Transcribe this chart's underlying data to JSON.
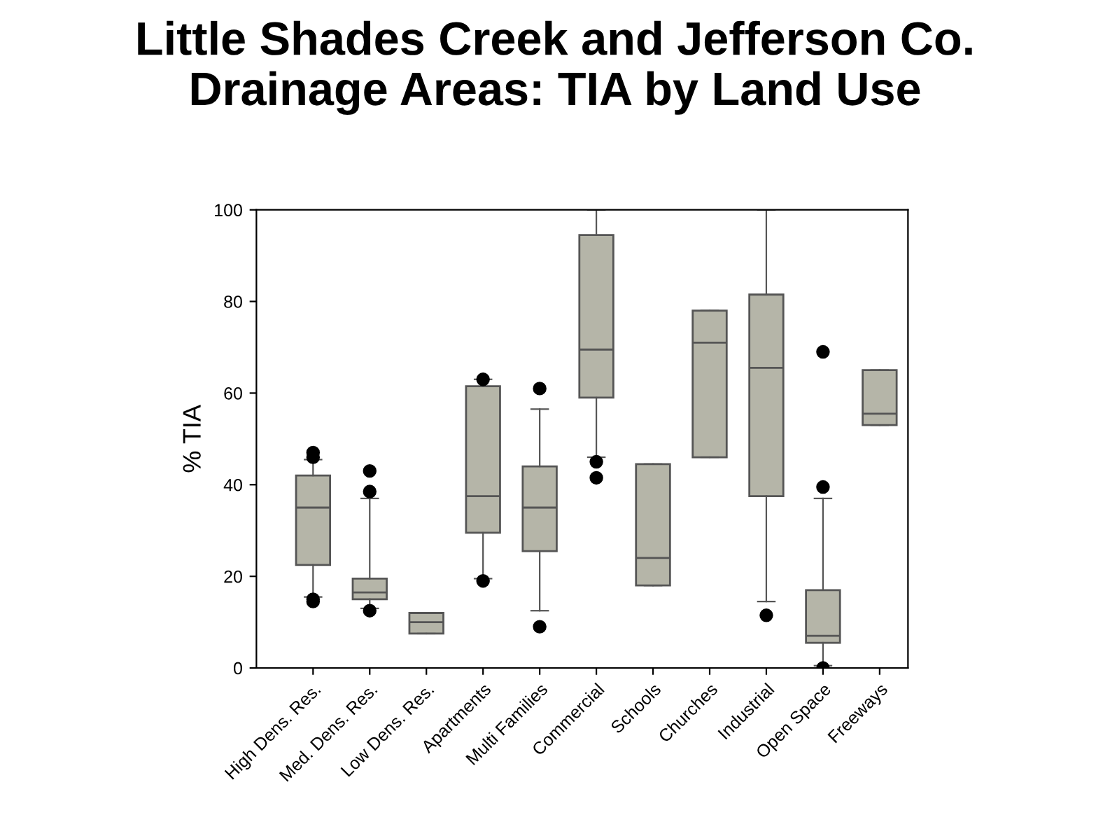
{
  "chart_data": {
    "type": "box",
    "title": "Little Shades Creek and Jefferson Co.\nDrainage Areas: TIA by Land Use",
    "ylabel": "% TIA",
    "categories": [
      "High Dens. Res.",
      "Med. Dens. Res.",
      "Low Dens. Res.",
      "Apartments",
      "Multi Families",
      "Commercial",
      "Schools",
      "Churches",
      "Industrial",
      "Open Space",
      "Freeways"
    ],
    "color": "#b5b5a8",
    "boxes": [
      {
        "low": 15.5,
        "q1": 22.5,
        "median": 35,
        "q3": 42,
        "high": 45.5,
        "outliers": [
          14.5,
          15,
          46,
          47
        ]
      },
      {
        "low": 13,
        "q1": 15,
        "median": 16.5,
        "q3": 19.5,
        "high": 37,
        "outliers": [
          12.5,
          38.5,
          43
        ]
      },
      {
        "low": 7.5,
        "q1": 7.5,
        "median": 10,
        "q3": 12,
        "high": 12
      },
      {
        "low": 19.5,
        "q1": 29.5,
        "median": 37.5,
        "q3": 61.5,
        "high": 63,
        "outliers": [
          19,
          63
        ]
      },
      {
        "low": 12.5,
        "q1": 25.5,
        "median": 35,
        "q3": 44,
        "high": 56.5,
        "outliers": [
          9,
          61
        ]
      },
      {
        "low": 46,
        "q1": 59,
        "median": 69.5,
        "q3": 94.5,
        "high": 100,
        "outliers": [
          45,
          41.5
        ]
      },
      {
        "low": 18,
        "q1": 18,
        "median": 24,
        "q3": 44.5,
        "high": 44.5
      },
      {
        "low": 46,
        "q1": 46,
        "median": 71,
        "q3": 78,
        "high": 78
      },
      {
        "low": 14.5,
        "q1": 37.5,
        "median": 65.5,
        "q3": 81.5,
        "high": 100,
        "outliers": [
          11.5
        ]
      },
      {
        "low": 0.5,
        "q1": 5.5,
        "median": 7,
        "q3": 17,
        "high": 37,
        "outliers": [
          0,
          39.5,
          69
        ]
      },
      {
        "low": 53,
        "q1": 53,
        "median": 55.5,
        "q3": 65,
        "high": 65
      }
    ],
    "ylim": [
      0,
      100
    ],
    "yticks": [
      0,
      20,
      40,
      60,
      80,
      100
    ],
    "grid": false,
    "legend": false
  }
}
